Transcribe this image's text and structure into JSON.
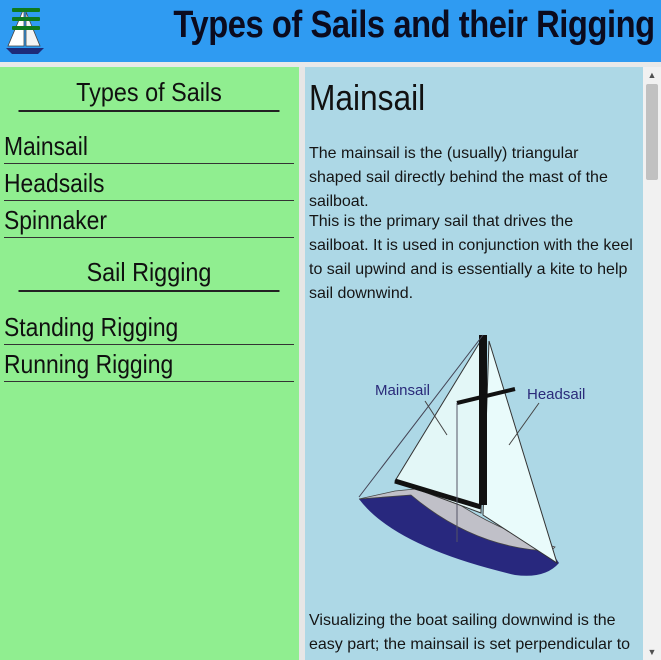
{
  "header": {
    "title": "Types of Sails and their Rigging",
    "accent_color": "#2f9bf2",
    "menu_icon": "hamburger-icon",
    "logo_icon": "sailboat-logo-icon"
  },
  "sidebar": {
    "background": "#90ee90",
    "sail_types_heading": "Types of Sails",
    "sail_types": [
      "Mainsail",
      "Headsails",
      "Spinnaker"
    ],
    "rigging_heading": "Sail Rigging",
    "rigging": [
      "Standing Rigging",
      "Running Rigging"
    ]
  },
  "content": {
    "background": "#add8e6",
    "heading": "Mainsail",
    "paragraphs": [
      "The mainsail is the (usually) triangular shaped sail directly behind the mast of the sailboat.",
      "This is the primary sail that drives the sailboat. It is used in conjunction with the keel to sail upwind and is essentially a kite to help sail downwind.",
      "Visualizing the boat sailing downwind is the easy part; the mainsail is set perpendicular to"
    ],
    "figure": {
      "label_mainsail": "Mainsail",
      "label_headsail": "Headsail"
    }
  },
  "scrollbar": {
    "up_icon": "scroll-up-arrow-icon",
    "down_icon": "scroll-down-arrow-icon"
  }
}
